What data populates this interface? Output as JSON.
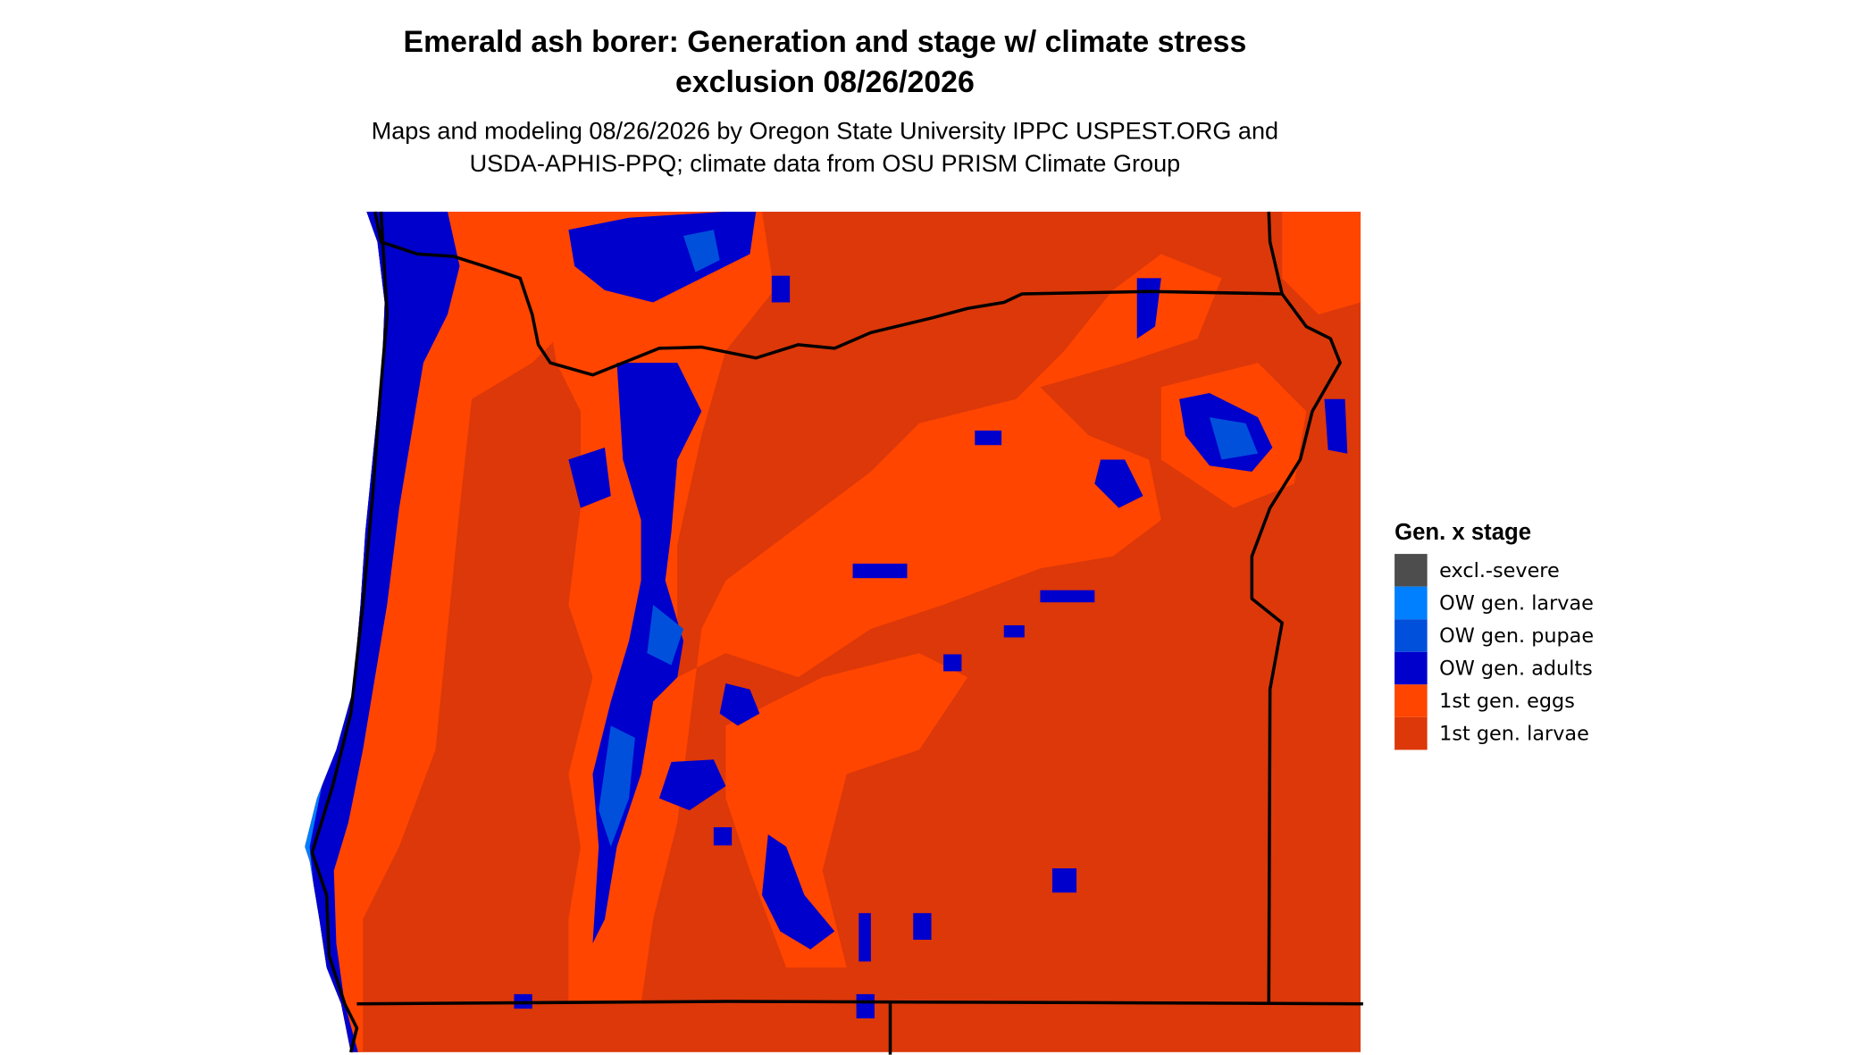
{
  "title": [
    "Emerald ash borer: Generation and stage w/ climate stress",
    "exclusion 08/26/2026"
  ],
  "subtitle": [
    "Maps and modeling 08/26/2026 by Oregon State University IPPC USPEST.ORG and",
    "USDA-APHIS-PPQ; climate data from OSU PRISM Climate Group"
  ],
  "legend": {
    "title": "Gen. x stage",
    "items": [
      {
        "label": "excl.-severe",
        "color": "#4d4d4d"
      },
      {
        "label": "OW gen. larvae",
        "color": "#0080ff"
      },
      {
        "label": "OW gen. pupae",
        "color": "#0050dc"
      },
      {
        "label": "OW gen. adults",
        "color": "#0000cc"
      },
      {
        "label": "1st gen. eggs",
        "color": "#ff4500"
      },
      {
        "label": "1st gen. larvae",
        "color": "#dc380a"
      }
    ]
  }
}
